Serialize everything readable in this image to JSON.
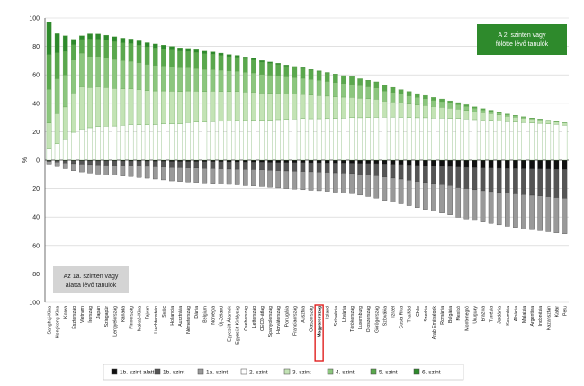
{
  "chart_data": {
    "type": "bar",
    "stacked": true,
    "diverging": true,
    "ylabel": "%",
    "ylim": [
      -100,
      100
    ],
    "yticks": [
      {
        "value": 100,
        "label": "100"
      },
      {
        "value": 80,
        "label": "80"
      },
      {
        "value": 60,
        "label": "60"
      },
      {
        "value": 40,
        "label": "40"
      },
      {
        "value": 20,
        "label": "20"
      },
      {
        "value": 0,
        "label": "0"
      },
      {
        "value": -20,
        "label": "20"
      },
      {
        "value": -40,
        "label": "40"
      },
      {
        "value": -60,
        "label": "60"
      },
      {
        "value": -80,
        "label": "80"
      },
      {
        "value": -100,
        "label": "100"
      }
    ],
    "annotations": {
      "above": "A 2. szinten vagy fölötte lévő tanulók",
      "below": "Az 1a. szinten vagy alatta lévő tanulók"
    },
    "highlight": "Magyarország",
    "legend": [
      {
        "label": "1b. szint alatt",
        "color": "#111111"
      },
      {
        "label": "1b. szint",
        "color": "#555555"
      },
      {
        "label": "1a. szint",
        "color": "#999999"
      },
      {
        "label": "2. szint",
        "color": "#ffffff"
      },
      {
        "label": "3. szint",
        "color": "#c3e3b5"
      },
      {
        "label": "4. szint",
        "color": "#8cc67e"
      },
      {
        "label": "5. szint",
        "color": "#5aa84d"
      },
      {
        "label": "6. szint",
        "color": "#2e8a2c"
      }
    ],
    "categories": [
      "Sanghaj-Kína",
      "Hongkong-Kína",
      "Korea",
      "Észtország",
      "Vietnam",
      "Írország",
      "Japán",
      "Szingapúr",
      "Lengyelország",
      "Kanada",
      "Finnország",
      "Makaó-Kína",
      "Tajvan",
      "Liechtenstein",
      "Svájc",
      "Hollandia",
      "Ausztrália",
      "Németország",
      "Dánia",
      "Belgium",
      "Norvégia",
      "Új-Zéland",
      "Egyesült Államok",
      "Egyesült Királyság",
      "Csehország",
      "Lettország",
      "OECD-átlag",
      "Spanyolország",
      "Horvátország",
      "Portugália",
      "Franciaország",
      "Ausztria",
      "Olaszország",
      "Magyarország",
      "Izland",
      "Szlovénia",
      "Litvánia",
      "Törökország",
      "Luxemburg",
      "Oroszország",
      "Görögország",
      "Szlovákia",
      "Izrael",
      "Costa Rica",
      "Thaiföld",
      "Chile",
      "Szerbia",
      "Arab Emírségek",
      "Románia",
      "Bulgária",
      "Mexikó",
      "Montenegró",
      "Uruguay",
      "Brazília",
      "Tunézia",
      "Jordánia",
      "Kolumbia",
      "Albánia",
      "Malajzia",
      "Argentína",
      "Indonézia",
      "Kazahsztán",
      "Katar",
      "Peru"
    ],
    "series": [
      {
        "name": "1b. szint alatt",
        "values": [
          -0.4,
          -0.4,
          -0.5,
          -0.5,
          -0.5,
          -0.6,
          -0.6,
          -0.6,
          -0.6,
          -0.7,
          -0.7,
          -0.7,
          -0.8,
          -0.9,
          -0.9,
          -1,
          -1,
          -1,
          -1,
          -1.1,
          -1.1,
          -1.2,
          -1.3,
          -1.3,
          -1.4,
          -1.4,
          -1.5,
          -1.6,
          -1.7,
          -1.7,
          -1.8,
          -1.8,
          -1.9,
          -1.9,
          -2,
          -2.1,
          -2.1,
          -2.2,
          -2.3,
          -2.4,
          -2.5,
          -2.7,
          -2.9,
          -3.1,
          -3.4,
          -3.7,
          -3.9,
          -4.1,
          -4.4,
          -4.6,
          -4.9,
          -5.1,
          -5.3,
          -5.5,
          -5.6,
          -5.7,
          -5.8,
          -5.9,
          -6,
          -6.1,
          -6.2,
          -6.3,
          -6.4,
          -6.5
        ]
      },
      {
        "name": "1b. szint",
        "values": [
          -0.6,
          -1,
          -1.5,
          -2,
          -2.3,
          -2.5,
          -2.7,
          -2.9,
          -3,
          -3.2,
          -3.3,
          -3.5,
          -3.6,
          -3.8,
          -4,
          -4.2,
          -4.3,
          -4.5,
          -4.6,
          -4.7,
          -4.8,
          -4.9,
          -5,
          -5.1,
          -5.1,
          -5.2,
          -5.3,
          -5.5,
          -5.7,
          -5.9,
          -6,
          -6.2,
          -6.3,
          -6.5,
          -6.6,
          -6.8,
          -7,
          -7.2,
          -7.6,
          -8,
          -8.5,
          -9.2,
          -9.7,
          -10.2,
          -10.7,
          -11.3,
          -11.8,
          -12.3,
          -12.8,
          -13.3,
          -14.4,
          -14.9,
          -15.5,
          -16,
          -16.5,
          -17,
          -17.4,
          -17.8,
          -18.2,
          -18.6,
          -19,
          -19.4,
          -19.9,
          -20.3
        ]
      },
      {
        "name": "1a. szint",
        "values": [
          -1.8,
          -3.2,
          -4,
          -5,
          -5.5,
          -6,
          -6.5,
          -6.8,
          -7,
          -7.3,
          -7.5,
          -8,
          -8.3,
          -8.6,
          -9,
          -9.4,
          -9.7,
          -9.9,
          -10,
          -10.2,
          -10.4,
          -10.6,
          -10.8,
          -11,
          -11.5,
          -11.6,
          -11.8,
          -12,
          -12.2,
          -12.4,
          -12.6,
          -12.8,
          -13,
          -13.1,
          -13.3,
          -13.6,
          -13.9,
          -14.2,
          -14.7,
          -15.2,
          -15.7,
          -16.4,
          -16.9,
          -17.4,
          -17.9,
          -18.4,
          -18.9,
          -19.3,
          -20,
          -20.6,
          -20.9,
          -21.3,
          -21.6,
          -22,
          -22.4,
          -22.8,
          -23.3,
          -23.6,
          -24,
          -24.2,
          -24.4,
          -24.6,
          -24.8,
          -25
        ]
      },
      {
        "name": "2. szint",
        "values": [
          7.9,
          11.5,
          14.5,
          19.6,
          21.9,
          22.8,
          23.7,
          23.9,
          24,
          24.5,
          25,
          24.9,
          24.8,
          25,
          25.6,
          25.6,
          25.6,
          26.4,
          26.7,
          26.7,
          27.1,
          27.3,
          27.4,
          27.9,
          27.9,
          28.1,
          28,
          28.1,
          28.5,
          28.6,
          28.9,
          29.4,
          29.1,
          29.1,
          29.2,
          29.3,
          29.5,
          29.9,
          29.8,
          29.9,
          30.1,
          30.2,
          30.3,
          30.1,
          29.9,
          29.8,
          29.8,
          29.6,
          29.6,
          29.4,
          29.3,
          28.9,
          28.5,
          28.2,
          28.1,
          27.6,
          27.1,
          26.8,
          26.5,
          26.2,
          25.9,
          25.5,
          25.1,
          24.6
        ]
      },
      {
        "name": "3. szint",
        "values": [
          18.2,
          21.2,
          22.9,
          27.7,
          29.7,
          28.3,
          27.9,
          27.2,
          26.5,
          25.8,
          25.3,
          24.8,
          24.2,
          23.7,
          23.1,
          22.9,
          22.6,
          22.3,
          21.8,
          21.6,
          21.4,
          21.1,
          20.8,
          20.5,
          20.1,
          19.7,
          19.2,
          18.8,
          18.3,
          17.8,
          17.4,
          16.8,
          16.6,
          16.3,
          15.8,
          15.3,
          14.8,
          14.3,
          13.8,
          13.3,
          12.7,
          11.3,
          10.7,
          10.1,
          9.6,
          9.1,
          8.6,
          8.1,
          7.6,
          7.1,
          6.6,
          6.1,
          5.6,
          5.1,
          4.6,
          4.2,
          3.8,
          3.4,
          3,
          2.7,
          2.4,
          2.1,
          1.8,
          1.5
        ]
      },
      {
        "name": "4. szint",
        "values": [
          23.7,
          24.6,
          22.5,
          23.1,
          23.7,
          21.9,
          21.3,
          20.8,
          20.4,
          19.8,
          19.3,
          18.8,
          18.4,
          18,
          17.6,
          17.2,
          16.8,
          16.4,
          16,
          15.6,
          15.3,
          14.9,
          14.6,
          14.2,
          13.9,
          13.6,
          13.2,
          12.9,
          12.6,
          12.2,
          11.8,
          11.4,
          11.1,
          10.8,
          10.4,
          10,
          9.6,
          9.2,
          8.8,
          8.4,
          8,
          7.1,
          6.6,
          6.1,
          5.7,
          5.2,
          4.8,
          4.4,
          4,
          3.6,
          3.2,
          2.8,
          2.4,
          2,
          1.7,
          1.4,
          1.1,
          0.9,
          0.7,
          0.5,
          0.4,
          0.3,
          0.2,
          0.1
        ]
      },
      {
        "name": "5. szint",
        "values": [
          24.4,
          18.2,
          16.6,
          10.8,
          9.6,
          12.2,
          12.2,
          12.4,
          12.4,
          12.4,
          12.4,
          12.3,
          12.3,
          12.2,
          12,
          11.8,
          11.7,
          11.4,
          11.2,
          11,
          10.7,
          10.4,
          10,
          9.7,
          9.4,
          9,
          8.6,
          8.3,
          7.9,
          7.5,
          7.1,
          6.8,
          6.5,
          6.2,
          5.9,
          5.6,
          5.3,
          5,
          4.7,
          4.4,
          4.1,
          3.8,
          3.5,
          3.2,
          2.9,
          2.6,
          2.3,
          2,
          1.8,
          1.6,
          1.4,
          1.2,
          1,
          0.9,
          0.7,
          0.6,
          0.5,
          0.4,
          0.3,
          0.2,
          0.2,
          0.1,
          0.1,
          0.1
        ]
      },
      {
        "name": "6. szint",
        "values": [
          22.9,
          13.5,
          11,
          3.8,
          2.6,
          3.7,
          3.7,
          3.6,
          3.5,
          3.3,
          3.2,
          3.1,
          2.9,
          2.8,
          2.6,
          2.5,
          2.3,
          2.1,
          2,
          1.8,
          1.7,
          1.6,
          1.5,
          1.4,
          1.3,
          1.2,
          1.1,
          1,
          0.9,
          0.8,
          0.7,
          0.6,
          0.5,
          0.5,
          0.4,
          0.4,
          0.3,
          0.3,
          0.2,
          0.2,
          0.2,
          0.1,
          0.1,
          0.1,
          0.1,
          0.1,
          0,
          0,
          0,
          0,
          0,
          0,
          0,
          0,
          0,
          0,
          0,
          0,
          0,
          0,
          0,
          0,
          0,
          0
        ]
      }
    ]
  }
}
